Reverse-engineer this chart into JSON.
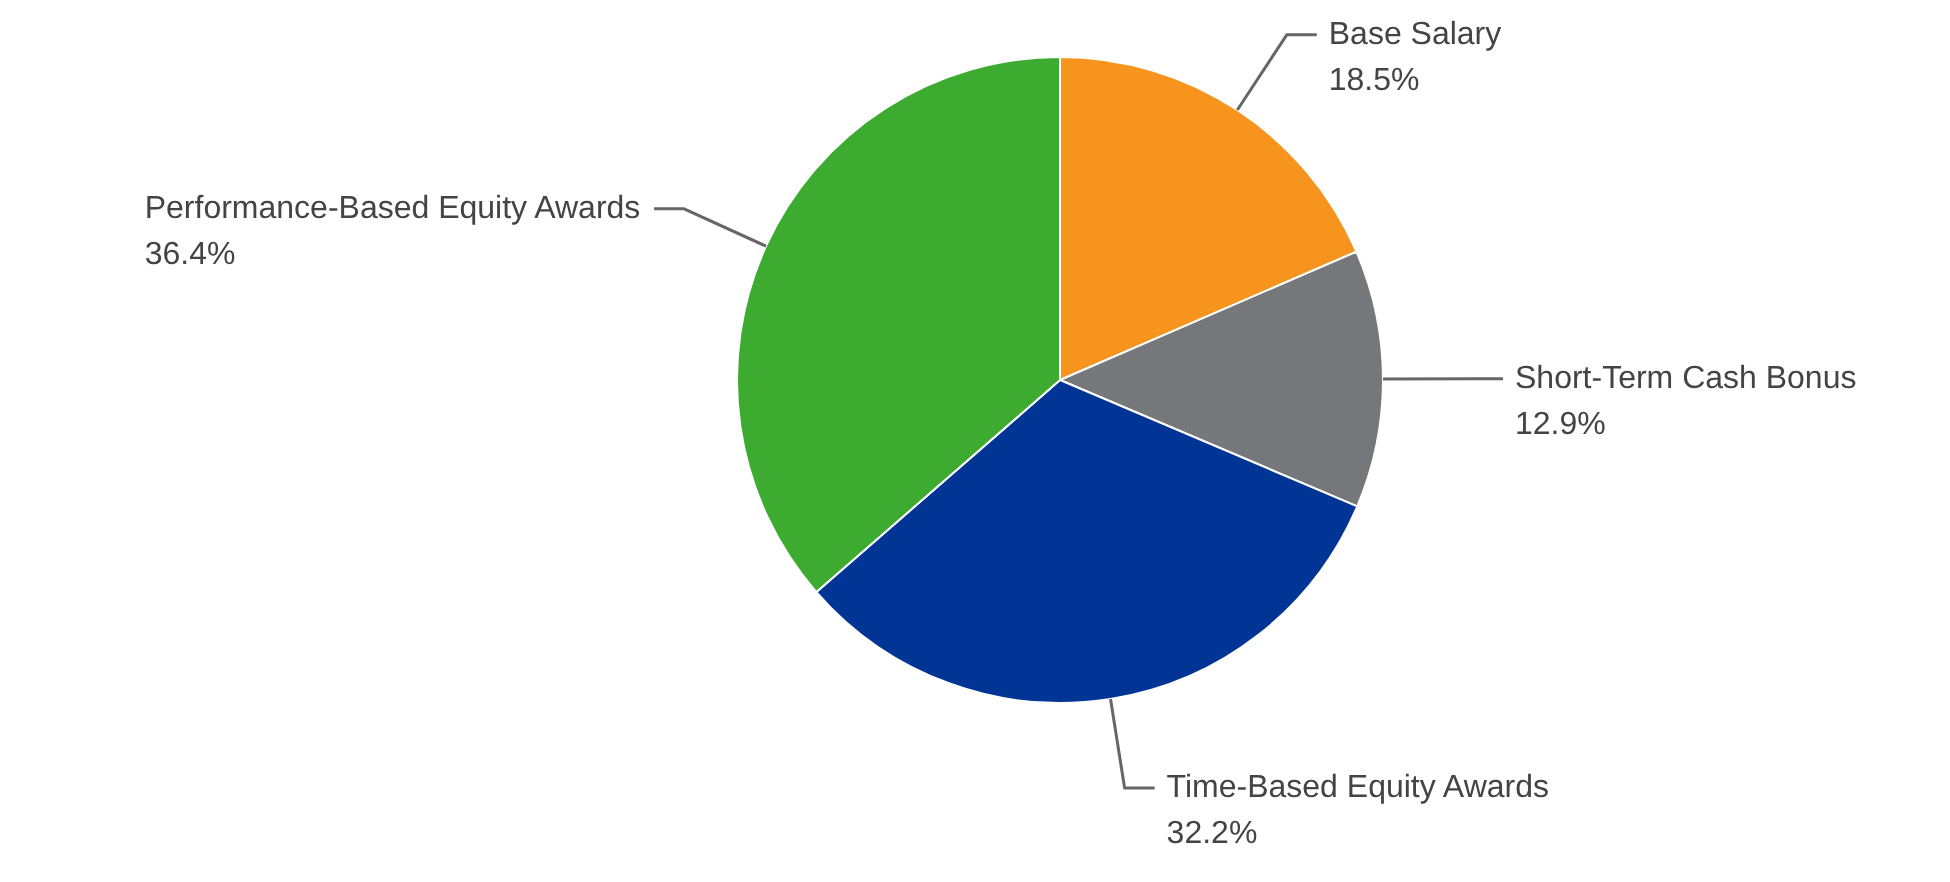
{
  "chart_data": {
    "type": "pie",
    "categories": [
      "Base Salary",
      "Short-Term Cash Bonus",
      "Time-Based Equity Awards",
      "Performance-Based Equity Awards"
    ],
    "values": [
      18.5,
      12.9,
      32.2,
      36.4
    ],
    "value_labels": [
      "18.5%",
      "12.9%",
      "32.2%",
      "36.4%"
    ],
    "colors": [
      "#f7941d",
      "#76777a",
      "#003595",
      "#3cab2f"
    ],
    "legend": false
  }
}
